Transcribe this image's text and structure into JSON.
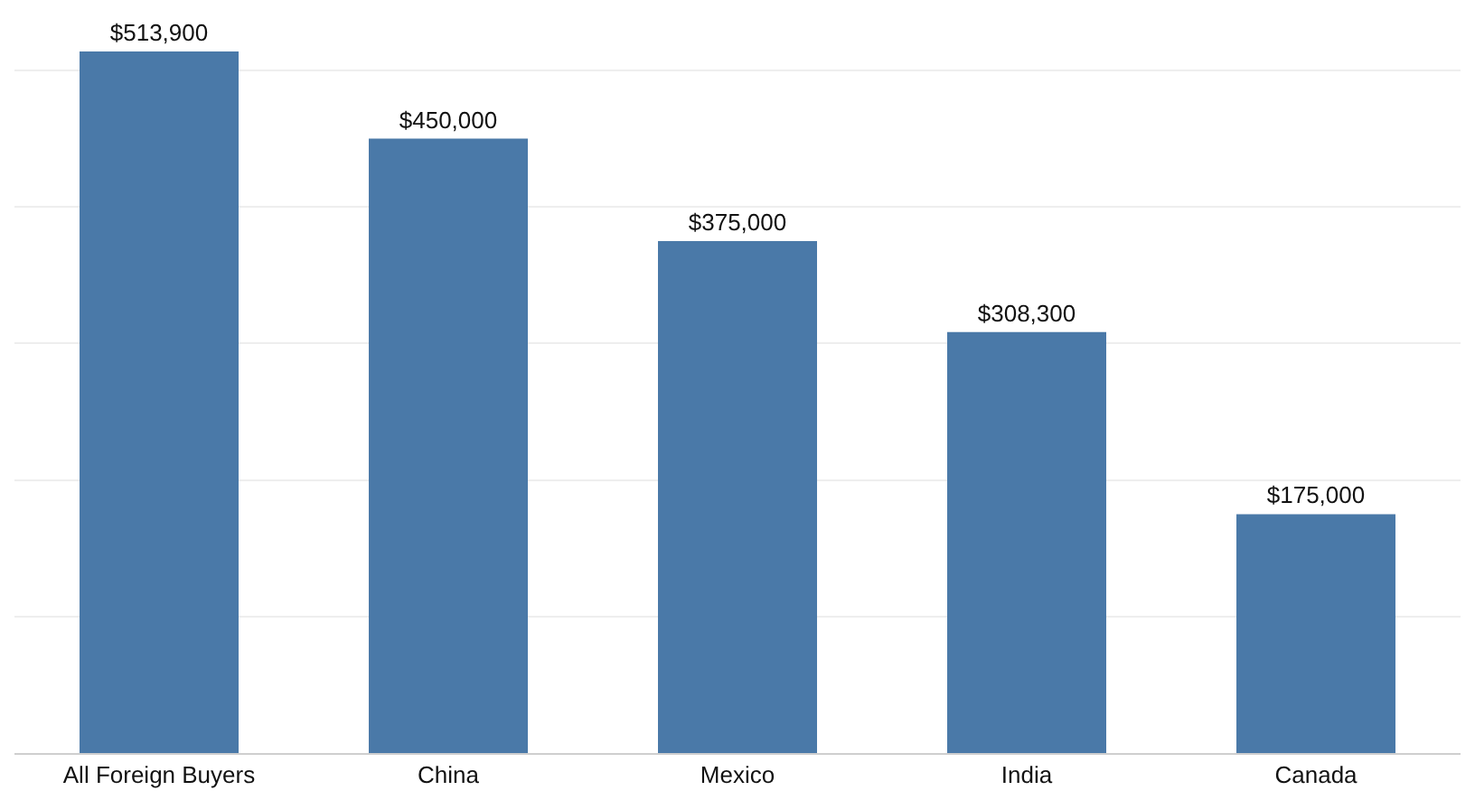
{
  "chart_data": {
    "type": "bar",
    "categories": [
      "All Foreign Buyers",
      "China",
      "Mexico",
      "India",
      "Canada"
    ],
    "values": [
      513900,
      450000,
      375000,
      308300,
      175000
    ],
    "value_labels": [
      "$513,900",
      "$450,000",
      "$375,000",
      "$308,300",
      "$175,000"
    ],
    "color": "#4a79a8",
    "yticks": [
      {
        "value": 0,
        "label": null
      },
      {
        "value": 100000,
        "label": null
      },
      {
        "value": 200000,
        "label": null
      },
      {
        "value": 300000,
        "label": null
      },
      {
        "value": 400000,
        "label": null
      },
      {
        "value": 500000,
        "label": null
      }
    ],
    "grid": "y",
    "tick_labels": "x",
    "legend": false
  }
}
